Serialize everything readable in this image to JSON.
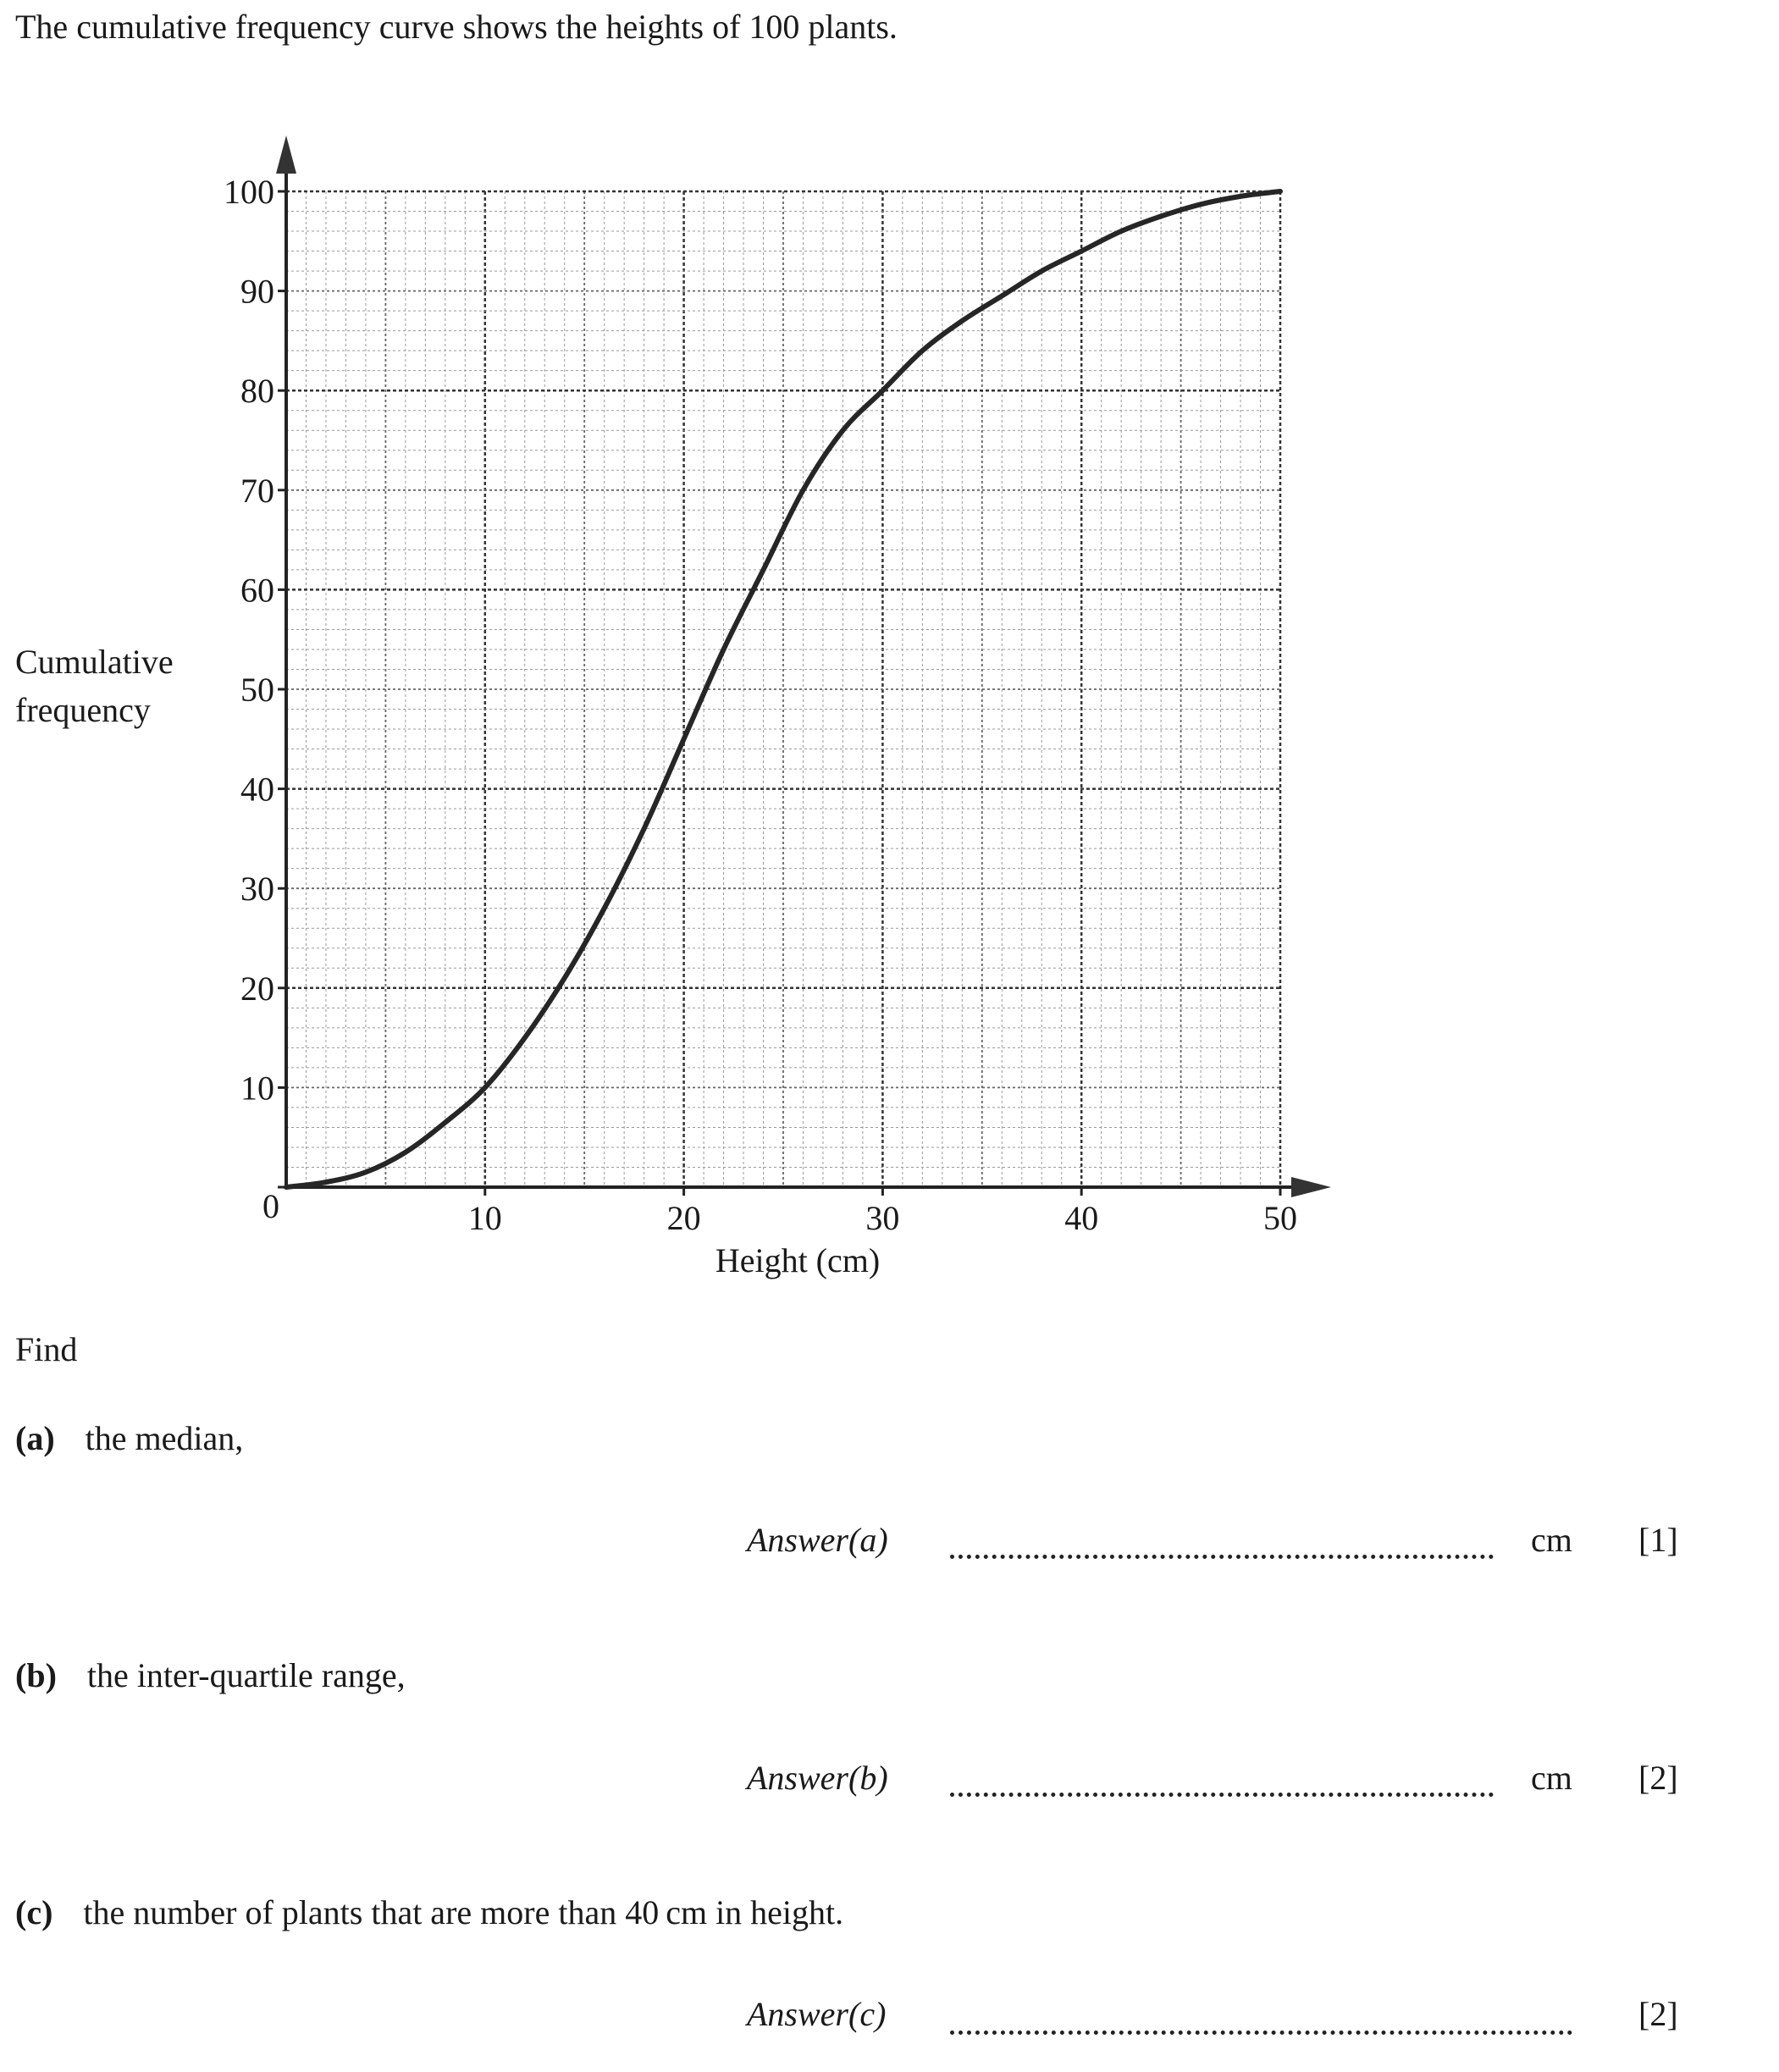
{
  "intro": "The cumulative frequency curve shows the heights of 100 plants.",
  "chart_data": {
    "type": "line",
    "ylabel_lines": [
      "Cumulative",
      "frequency"
    ],
    "xlabel": "Height (cm)",
    "xlim": [
      0,
      50
    ],
    "ylim": [
      0,
      100
    ],
    "x_ticks": [
      "10",
      "20",
      "30",
      "40",
      "50"
    ],
    "y_ticks": [
      "0",
      "10",
      "20",
      "30",
      "40",
      "50",
      "60",
      "70",
      "80",
      "90",
      "100"
    ],
    "grid": "on",
    "series": [
      {
        "x": [
          0,
          2,
          4,
          6,
          8,
          10,
          12,
          14,
          16,
          18,
          20,
          22,
          24,
          26,
          28,
          30,
          32,
          34,
          36,
          38,
          40,
          42,
          44,
          46,
          48,
          50
        ],
        "y": [
          0,
          0.5,
          1.5,
          3.5,
          6.5,
          10,
          15,
          21,
          28,
          36,
          45,
          54,
          62,
          70,
          76,
          80,
          84,
          87,
          89.5,
          92,
          94,
          96,
          97.5,
          98.7,
          99.5,
          100
        ]
      }
    ]
  },
  "find": "Find",
  "questions": [
    {
      "label": "(a)",
      "text": "the median,",
      "answer_label": "Answer(a)",
      "unit": "cm",
      "marks": "[1]"
    },
    {
      "label": "(b)",
      "text": "the inter-quartile range,",
      "answer_label": "Answer(b)",
      "unit": "cm",
      "marks": "[2]"
    },
    {
      "label": "(c)",
      "text": "the number of plants that are more than 40 cm in height.",
      "answer_label": "Answer(c)",
      "unit": "",
      "marks": "[2]"
    }
  ]
}
